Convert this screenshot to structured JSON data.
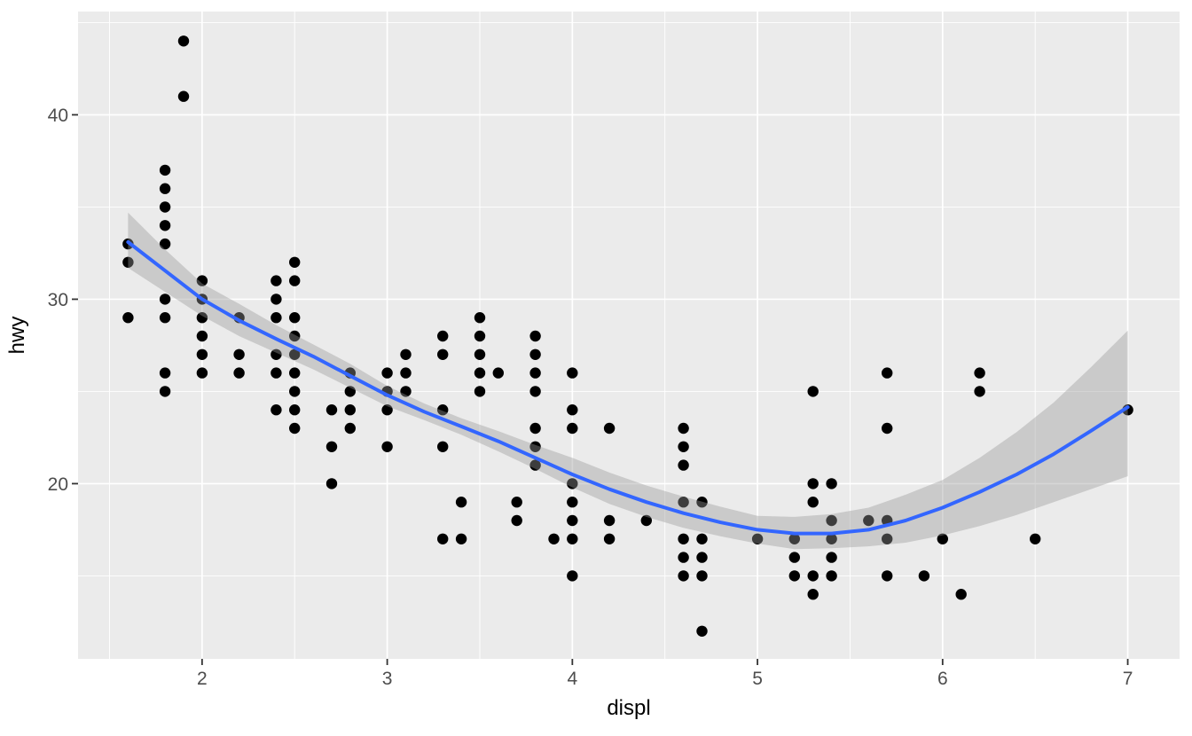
{
  "chart_data": {
    "type": "scatter",
    "title": "",
    "xlabel": "displ",
    "ylabel": "hwy",
    "xlim": [
      1.33,
      7.28
    ],
    "ylim": [
      10.5,
      45.6
    ],
    "x_ticks": [
      2,
      3,
      4,
      5,
      6,
      7
    ],
    "y_ticks": [
      20,
      30,
      40
    ],
    "x_minor_ticks": [
      1.5,
      2.5,
      3.5,
      4.5,
      5.5,
      6.5
    ],
    "y_minor_ticks": [
      15,
      25,
      35,
      45
    ],
    "grid": "major-and-minor",
    "legend": "none",
    "points": [
      [
        1.6,
        29
      ],
      [
        1.6,
        32
      ],
      [
        1.6,
        33
      ],
      [
        1.8,
        25
      ],
      [
        1.8,
        26
      ],
      [
        1.8,
        29
      ],
      [
        1.8,
        30
      ],
      [
        1.8,
        33
      ],
      [
        1.8,
        34
      ],
      [
        1.8,
        35
      ],
      [
        1.8,
        36
      ],
      [
        1.8,
        37
      ],
      [
        1.9,
        41
      ],
      [
        1.9,
        44
      ],
      [
        2.0,
        26
      ],
      [
        2.0,
        27
      ],
      [
        2.0,
        28
      ],
      [
        2.0,
        29
      ],
      [
        2.0,
        30
      ],
      [
        2.0,
        31
      ],
      [
        2.2,
        26
      ],
      [
        2.2,
        27
      ],
      [
        2.2,
        29
      ],
      [
        2.4,
        24
      ],
      [
        2.4,
        26
      ],
      [
        2.4,
        27
      ],
      [
        2.4,
        29
      ],
      [
        2.4,
        30
      ],
      [
        2.4,
        31
      ],
      [
        2.5,
        23
      ],
      [
        2.5,
        24
      ],
      [
        2.5,
        25
      ],
      [
        2.5,
        26
      ],
      [
        2.5,
        27
      ],
      [
        2.5,
        28
      ],
      [
        2.5,
        29
      ],
      [
        2.5,
        31
      ],
      [
        2.5,
        32
      ],
      [
        2.7,
        20
      ],
      [
        2.7,
        22
      ],
      [
        2.7,
        24
      ],
      [
        2.8,
        23
      ],
      [
        2.8,
        24
      ],
      [
        2.8,
        25
      ],
      [
        2.8,
        26
      ],
      [
        3.0,
        22
      ],
      [
        3.0,
        24
      ],
      [
        3.0,
        25
      ],
      [
        3.0,
        26
      ],
      [
        3.1,
        25
      ],
      [
        3.1,
        26
      ],
      [
        3.1,
        27
      ],
      [
        3.3,
        17
      ],
      [
        3.3,
        22
      ],
      [
        3.3,
        24
      ],
      [
        3.3,
        27
      ],
      [
        3.3,
        28
      ],
      [
        3.4,
        17
      ],
      [
        3.4,
        19
      ],
      [
        3.5,
        25
      ],
      [
        3.5,
        26
      ],
      [
        3.5,
        27
      ],
      [
        3.5,
        28
      ],
      [
        3.5,
        29
      ],
      [
        3.6,
        26
      ],
      [
        3.7,
        18
      ],
      [
        3.7,
        19
      ],
      [
        3.8,
        21
      ],
      [
        3.8,
        22
      ],
      [
        3.8,
        23
      ],
      [
        3.8,
        25
      ],
      [
        3.8,
        26
      ],
      [
        3.8,
        27
      ],
      [
        3.8,
        28
      ],
      [
        3.9,
        17
      ],
      [
        4.0,
        15
      ],
      [
        4.0,
        17
      ],
      [
        4.0,
        18
      ],
      [
        4.0,
        19
      ],
      [
        4.0,
        20
      ],
      [
        4.0,
        23
      ],
      [
        4.0,
        24
      ],
      [
        4.0,
        26
      ],
      [
        4.2,
        17
      ],
      [
        4.2,
        18
      ],
      [
        4.2,
        23
      ],
      [
        4.4,
        18
      ],
      [
        4.6,
        15
      ],
      [
        4.6,
        16
      ],
      [
        4.6,
        17
      ],
      [
        4.6,
        19
      ],
      [
        4.6,
        21
      ],
      [
        4.6,
        22
      ],
      [
        4.6,
        23
      ],
      [
        4.7,
        12
      ],
      [
        4.7,
        15
      ],
      [
        4.7,
        16
      ],
      [
        4.7,
        17
      ],
      [
        4.7,
        19
      ],
      [
        5.0,
        17
      ],
      [
        5.2,
        15
      ],
      [
        5.2,
        16
      ],
      [
        5.2,
        17
      ],
      [
        5.3,
        14
      ],
      [
        5.3,
        15
      ],
      [
        5.3,
        19
      ],
      [
        5.3,
        20
      ],
      [
        5.3,
        25
      ],
      [
        5.4,
        15
      ],
      [
        5.4,
        16
      ],
      [
        5.4,
        17
      ],
      [
        5.4,
        18
      ],
      [
        5.4,
        20
      ],
      [
        5.6,
        18
      ],
      [
        5.7,
        15
      ],
      [
        5.7,
        17
      ],
      [
        5.7,
        18
      ],
      [
        5.7,
        23
      ],
      [
        5.7,
        26
      ],
      [
        5.9,
        15
      ],
      [
        6.0,
        17
      ],
      [
        6.1,
        14
      ],
      [
        6.2,
        25
      ],
      [
        6.2,
        26
      ],
      [
        6.5,
        17
      ],
      [
        7.0,
        24
      ]
    ],
    "smooth": {
      "method": "loess",
      "x": [
        1.6,
        1.8,
        2.0,
        2.2,
        2.4,
        2.6,
        2.8,
        3.0,
        3.2,
        3.4,
        3.6,
        3.8,
        4.0,
        4.2,
        4.4,
        4.6,
        4.8,
        5.0,
        5.2,
        5.4,
        5.6,
        5.8,
        6.0,
        6.2,
        6.4,
        6.6,
        6.8,
        7.0
      ],
      "y": [
        33.1,
        31.55,
        30.0,
        28.85,
        27.85,
        26.9,
        25.85,
        24.8,
        23.9,
        23.1,
        22.3,
        21.4,
        20.5,
        19.7,
        19.0,
        18.4,
        17.9,
        17.5,
        17.3,
        17.3,
        17.5,
        18.0,
        18.7,
        19.55,
        20.5,
        21.6,
        22.85,
        24.15
      ]
    },
    "ribbon": {
      "x": [
        1.6,
        1.8,
        2.0,
        2.2,
        2.4,
        2.6,
        2.8,
        3.0,
        3.2,
        3.4,
        3.6,
        3.8,
        4.0,
        4.2,
        4.4,
        4.6,
        4.8,
        5.0,
        5.2,
        5.4,
        5.6,
        5.8,
        6.0,
        6.2,
        6.4,
        6.6,
        6.8,
        7.0
      ],
      "upper": [
        34.7,
        32.7,
        30.85,
        29.75,
        28.6,
        27.55,
        26.5,
        25.3,
        24.35,
        23.55,
        22.85,
        22.1,
        21.4,
        20.6,
        19.9,
        19.3,
        18.75,
        18.25,
        18.2,
        18.35,
        18.7,
        19.4,
        20.2,
        21.4,
        22.8,
        24.4,
        26.3,
        28.3
      ],
      "lower": [
        31.7,
        30.4,
        29.1,
        28.0,
        27.1,
        26.2,
        25.2,
        24.2,
        23.45,
        22.65,
        21.75,
        20.8,
        19.8,
        18.9,
        18.2,
        17.6,
        17.15,
        16.75,
        16.45,
        16.5,
        16.6,
        16.8,
        17.2,
        17.7,
        18.3,
        19.0,
        19.7,
        20.4
      ]
    }
  },
  "colors": {
    "figure_bg": "#FFFFFF",
    "panel_bg": "#EBEBEB",
    "grid": "#FFFFFF",
    "point": "#000000",
    "smooth_line": "#3366FF",
    "ribbon_fill": "#999999",
    "ribbon_opacity": 0.4,
    "tick_text": "#4D4D4D",
    "axis_title": "#000000",
    "tick_mark": "#333333"
  }
}
